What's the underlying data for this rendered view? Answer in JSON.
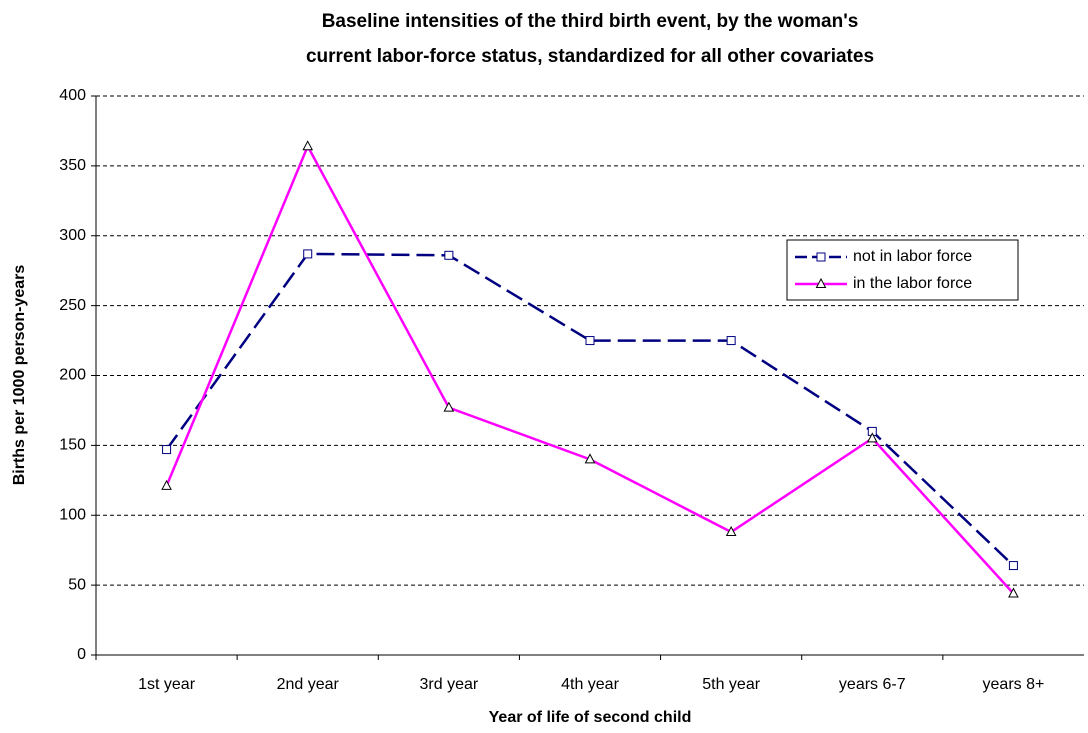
{
  "chart_data": {
    "type": "line",
    "title": [
      "Baseline intensities of the third birth event, by the woman's",
      "current labor-force status, standardized for all other covariates"
    ],
    "x_label": "Year of life of second child",
    "y_label": "Births per 1000 person-years",
    "categories": [
      "1st year",
      "2nd year",
      "3rd year",
      "4th year",
      "5th year",
      "years 6-7",
      "years 8+"
    ],
    "series": [
      {
        "name": "not in labor force",
        "color": "#000080",
        "dash": true,
        "marker": "square",
        "values": [
          147,
          287,
          286,
          225,
          225,
          160,
          64
        ]
      },
      {
        "name": "in the labor force",
        "color": "#ff00ff",
        "dash": false,
        "marker": "triangle",
        "values": [
          121,
          364,
          177,
          140,
          88,
          155,
          44
        ]
      }
    ],
    "ylim": [
      0,
      400
    ],
    "yticks": [
      0,
      50,
      100,
      150,
      200,
      250,
      300,
      350,
      400
    ],
    "grid": true,
    "legend": "right"
  }
}
